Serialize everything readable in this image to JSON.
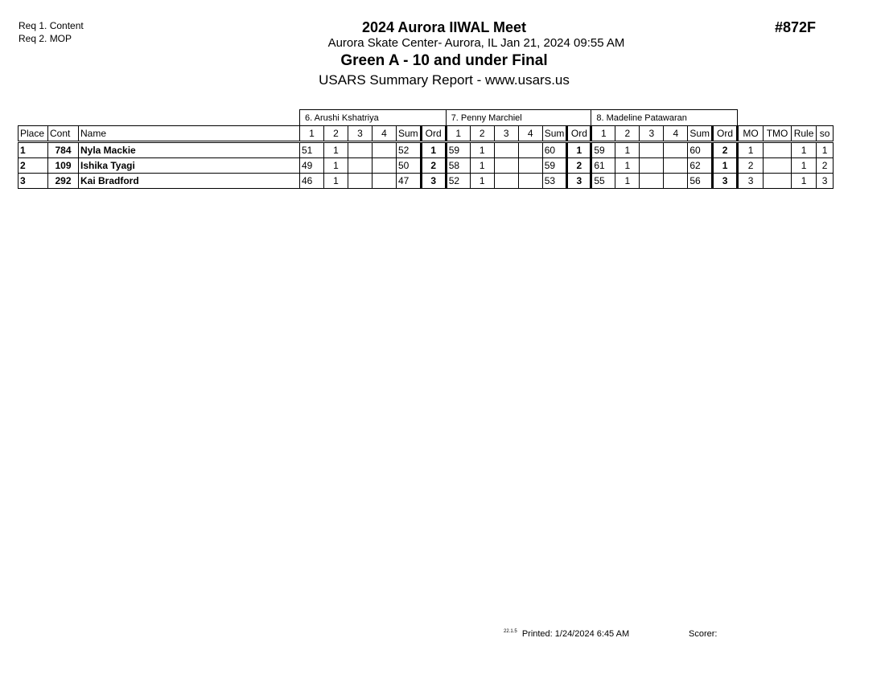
{
  "requirements": [
    "Req 1.  Content",
    "Req 2.  MOP"
  ],
  "header": {
    "meet": "2024 Aurora IIWAL Meet",
    "location": "Aurora Skate Center- Aurora, IL  Jan 21, 2024  09:55 AM",
    "event": "Green A - 10 and under Final",
    "report": "USARS Summary Report - www.usars.us",
    "event_id": "#872F"
  },
  "judges": [
    "6.  Arushi Kshatriya",
    "7.  Penny Marchiel",
    "8.  Madeline Patawaran"
  ],
  "columns": {
    "place": "Place",
    "cont": "Cont",
    "name": "Name",
    "j": [
      "1",
      "2",
      "3",
      "4",
      "Sum",
      "Ord"
    ],
    "mo": "MO",
    "tmo": "TMO",
    "rule": "Rule",
    "so": "so"
  },
  "rows": [
    {
      "place": "1",
      "cont": "784",
      "name": "Nyla Mackie",
      "scores": [
        [
          "51",
          "1",
          "",
          "",
          "52",
          "1"
        ],
        [
          "59",
          "1",
          "",
          "",
          "60",
          "1"
        ],
        [
          "59",
          "1",
          "",
          "",
          "60",
          "2"
        ]
      ],
      "mo": "1",
      "tmo": "",
      "rule": "1",
      "so": "1"
    },
    {
      "place": "2",
      "cont": "109",
      "name": "Ishika Tyagi",
      "scores": [
        [
          "49",
          "1",
          "",
          "",
          "50",
          "2"
        ],
        [
          "58",
          "1",
          "",
          "",
          "59",
          "2"
        ],
        [
          "61",
          "1",
          "",
          "",
          "62",
          "1"
        ]
      ],
      "mo": "2",
      "tmo": "",
      "rule": "1",
      "so": "2"
    },
    {
      "place": "3",
      "cont": "292",
      "name": "Kai Bradford",
      "scores": [
        [
          "46",
          "1",
          "",
          "",
          "47",
          "3"
        ],
        [
          "52",
          "1",
          "",
          "",
          "53",
          "3"
        ],
        [
          "55",
          "1",
          "",
          "",
          "56",
          "3"
        ]
      ],
      "mo": "3",
      "tmo": "",
      "rule": "1",
      "so": "3"
    }
  ],
  "footer": {
    "version": "22.1.5",
    "printed": "Printed:  1/24/2024  6:45 AM",
    "scorer": "Scorer:"
  }
}
